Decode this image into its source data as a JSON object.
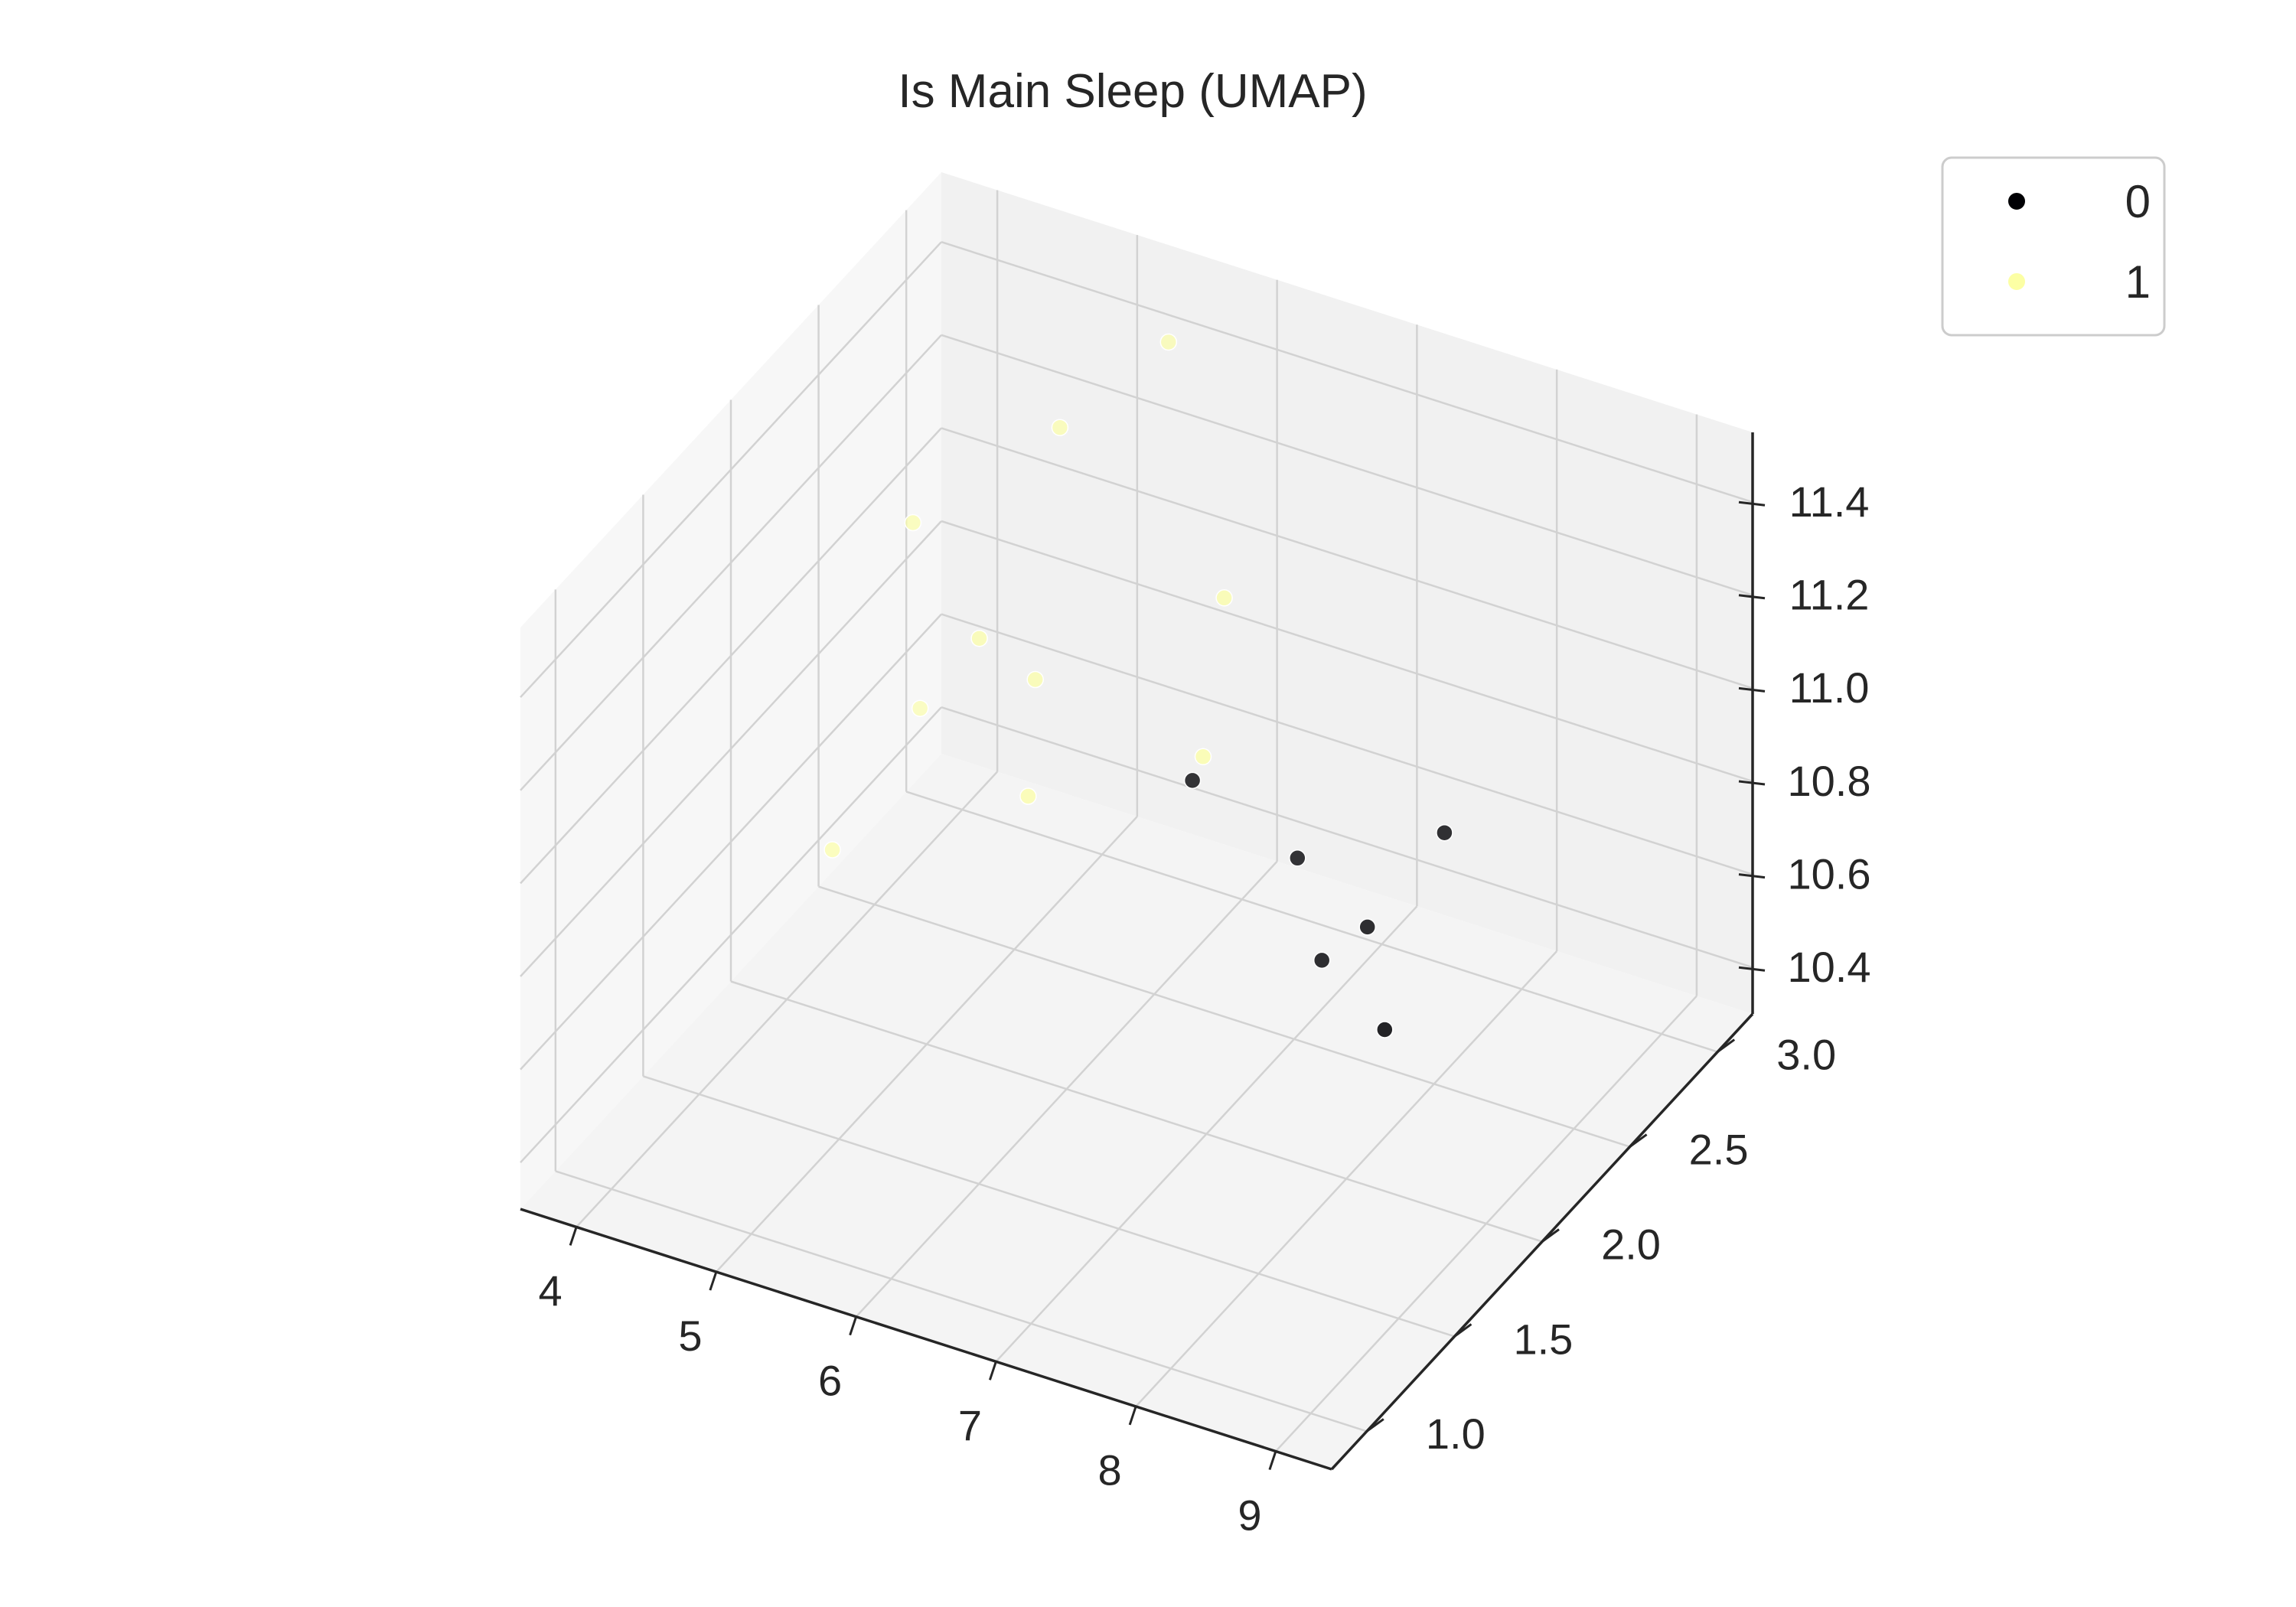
{
  "chart_data": {
    "type": "scatter",
    "title": "Is Main Sleep (UMAP)",
    "xlabel": "",
    "ylabel": "",
    "zlabel": "",
    "x_ticks": [
      "4",
      "5",
      "6",
      "7",
      "8",
      "9"
    ],
    "y_ticks": [
      "1.0",
      "1.5",
      "2.0",
      "2.5",
      "3.0"
    ],
    "z_ticks": [
      "10.4",
      "10.6",
      "10.8",
      "11.0",
      "11.2",
      "11.4"
    ],
    "xlim": [
      3.6,
      9.4
    ],
    "ylim": [
      0.8,
      3.2
    ],
    "zlim": [
      10.3,
      11.55
    ],
    "grid": true,
    "legend_position": "top-right",
    "series": [
      {
        "name": "0",
        "color": "#000004",
        "points": [
          {
            "x": 8.2,
            "y": 2.4,
            "z": 10.9
          },
          {
            "x": 6.9,
            "y": 2.0,
            "z": 11.05
          },
          {
            "x": 7.4,
            "y": 2.2,
            "z": 10.85
          },
          {
            "x": 7.7,
            "y": 2.1,
            "z": 10.7
          },
          {
            "x": 7.9,
            "y": 2.2,
            "z": 10.75
          },
          {
            "x": 8.4,
            "y": 1.9,
            "z": 10.7
          }
        ]
      },
      {
        "name": "1",
        "color": "#fcffa4",
        "points": [
          {
            "x": 5.6,
            "y": 2.9,
            "z": 11.5
          },
          {
            "x": 5.2,
            "y": 2.6,
            "z": 11.4
          },
          {
            "x": 6.5,
            "y": 2.5,
            "z": 11.2
          },
          {
            "x": 4.4,
            "y": 2.4,
            "z": 11.2
          },
          {
            "x": 5.0,
            "y": 2.3,
            "z": 11.05
          },
          {
            "x": 5.4,
            "y": 2.3,
            "z": 11.0
          },
          {
            "x": 5.6,
            "y": 2.1,
            "z": 10.85
          },
          {
            "x": 6.6,
            "y": 2.3,
            "z": 10.95
          },
          {
            "x": 4.2,
            "y": 2.6,
            "z": 10.7
          },
          {
            "x": 4.2,
            "y": 2.1,
            "z": 10.6
          }
        ]
      }
    ]
  }
}
